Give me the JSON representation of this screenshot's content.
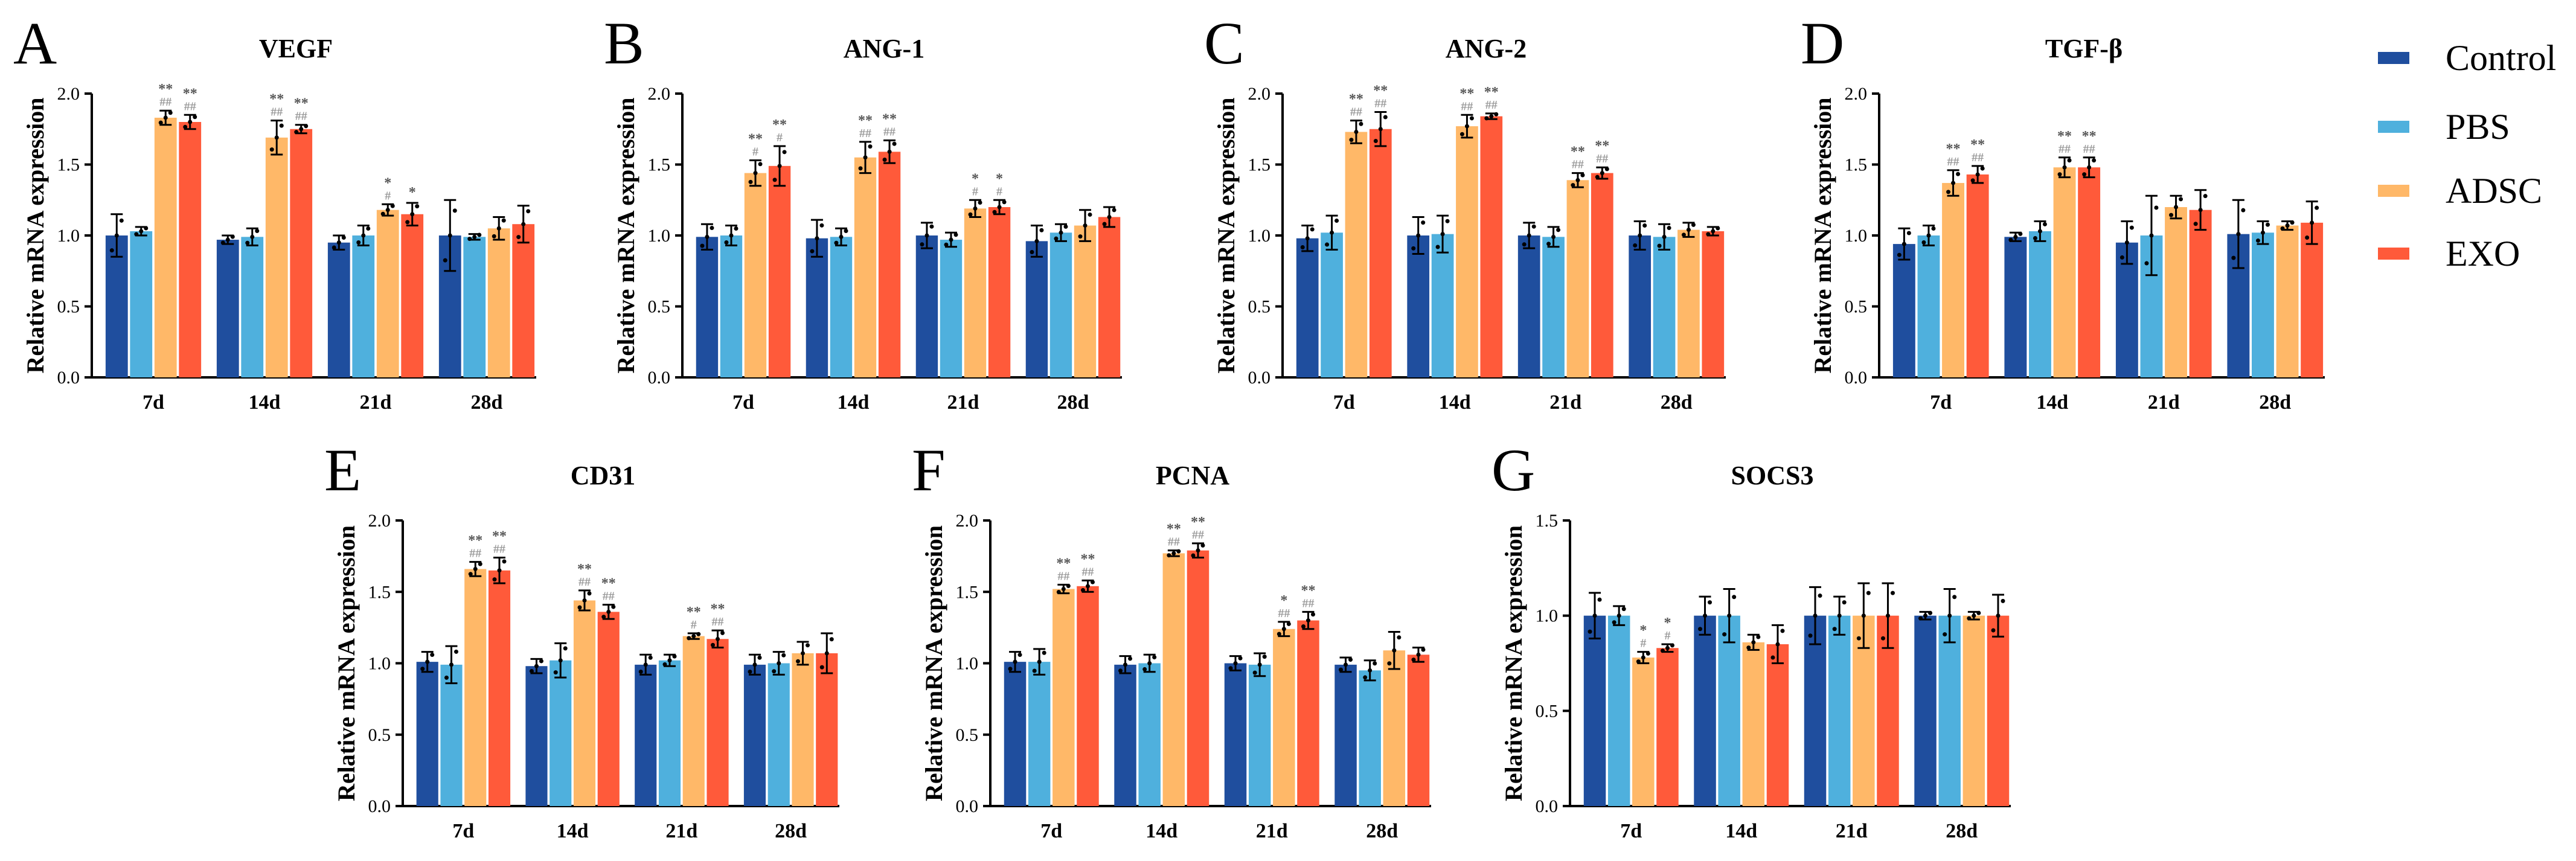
{
  "chart_data": [
    {
      "panel": "A",
      "type": "bar",
      "title": "VEGF",
      "ylabel": "Relative mRNA expression",
      "xlabel": "",
      "ylim": [
        0,
        2.0
      ],
      "yticks": [
        "0.0",
        "0.5",
        "1.0",
        "1.5",
        "2.0"
      ],
      "categories": [
        "7d",
        "14d",
        "21d",
        "28d"
      ],
      "series": [
        {
          "name": "Control",
          "values": [
            1.0,
            0.97,
            0.95,
            1.0
          ],
          "errors": [
            0.15,
            0.03,
            0.05,
            0.25
          ]
        },
        {
          "name": "PBS",
          "values": [
            1.03,
            0.99,
            1.0,
            0.99
          ],
          "errors": [
            0.03,
            0.06,
            0.07,
            0.02
          ]
        },
        {
          "name": "ADSC",
          "values": [
            1.83,
            1.69,
            1.18,
            1.05
          ],
          "errors": [
            0.05,
            0.12,
            0.04,
            0.08
          ]
        },
        {
          "name": "EXO",
          "values": [
            1.8,
            1.75,
            1.15,
            1.08
          ],
          "errors": [
            0.05,
            0.03,
            0.08,
            0.13
          ]
        }
      ],
      "annotations": [
        {
          "series": "ADSC",
          "category": "7d",
          "star": "**",
          "hash": "##"
        },
        {
          "series": "EXO",
          "category": "7d",
          "star": "**",
          "hash": "##"
        },
        {
          "series": "ADSC",
          "category": "14d",
          "star": "**",
          "hash": "##"
        },
        {
          "series": "EXO",
          "category": "14d",
          "star": "**",
          "hash": "##"
        },
        {
          "series": "ADSC",
          "category": "21d",
          "star": "*",
          "hash": "#"
        },
        {
          "series": "EXO",
          "category": "21d",
          "star": "*",
          "hash": ""
        }
      ]
    },
    {
      "panel": "B",
      "type": "bar",
      "title": "ANG-1",
      "ylabel": "Relative mRNA expression",
      "xlabel": "",
      "ylim": [
        0,
        2.0
      ],
      "yticks": [
        "0.0",
        "0.5",
        "1.0",
        "1.5",
        "2.0"
      ],
      "categories": [
        "7d",
        "14d",
        "21d",
        "28d"
      ],
      "series": [
        {
          "name": "Control",
          "values": [
            0.99,
            0.98,
            1.0,
            0.96
          ],
          "errors": [
            0.09,
            0.13,
            0.09,
            0.11
          ]
        },
        {
          "name": "PBS",
          "values": [
            1.0,
            0.99,
            0.97,
            1.02
          ],
          "errors": [
            0.07,
            0.06,
            0.05,
            0.06
          ]
        },
        {
          "name": "ADSC",
          "values": [
            1.44,
            1.55,
            1.19,
            1.07
          ],
          "errors": [
            0.09,
            0.11,
            0.06,
            0.11
          ]
        },
        {
          "name": "EXO",
          "values": [
            1.49,
            1.59,
            1.2,
            1.13
          ],
          "errors": [
            0.14,
            0.08,
            0.05,
            0.07
          ]
        }
      ],
      "annotations": [
        {
          "series": "ADSC",
          "category": "7d",
          "star": "**",
          "hash": "#"
        },
        {
          "series": "EXO",
          "category": "7d",
          "star": "**",
          "hash": "#"
        },
        {
          "series": "ADSC",
          "category": "14d",
          "star": "**",
          "hash": "##"
        },
        {
          "series": "EXO",
          "category": "14d",
          "star": "**",
          "hash": "##"
        },
        {
          "series": "ADSC",
          "category": "21d",
          "star": "*",
          "hash": "#"
        },
        {
          "series": "EXO",
          "category": "21d",
          "star": "*",
          "hash": "#"
        }
      ]
    },
    {
      "panel": "C",
      "type": "bar",
      "title": "ANG-2",
      "ylabel": "Relative mRNA expression",
      "xlabel": "",
      "ylim": [
        0,
        2.0
      ],
      "yticks": [
        "0.0",
        "0.5",
        "1.0",
        "1.5",
        "2.0"
      ],
      "categories": [
        "7d",
        "14d",
        "21d",
        "28d"
      ],
      "series": [
        {
          "name": "Control",
          "values": [
            0.98,
            1.0,
            1.0,
            1.0
          ],
          "errors": [
            0.09,
            0.13,
            0.09,
            0.1
          ]
        },
        {
          "name": "PBS",
          "values": [
            1.02,
            1.01,
            0.99,
            0.99
          ],
          "errors": [
            0.12,
            0.13,
            0.07,
            0.09
          ]
        },
        {
          "name": "ADSC",
          "values": [
            1.73,
            1.77,
            1.39,
            1.04
          ],
          "errors": [
            0.08,
            0.08,
            0.05,
            0.05
          ]
        },
        {
          "name": "EXO",
          "values": [
            1.75,
            1.84,
            1.44,
            1.03
          ],
          "errors": [
            0.12,
            0.02,
            0.04,
            0.03
          ]
        }
      ],
      "annotations": [
        {
          "series": "ADSC",
          "category": "7d",
          "star": "**",
          "hash": "##"
        },
        {
          "series": "EXO",
          "category": "7d",
          "star": "**",
          "hash": "##"
        },
        {
          "series": "ADSC",
          "category": "14d",
          "star": "**",
          "hash": "##"
        },
        {
          "series": "EXO",
          "category": "14d",
          "star": "**",
          "hash": "##"
        },
        {
          "series": "ADSC",
          "category": "21d",
          "star": "**",
          "hash": "##"
        },
        {
          "series": "EXO",
          "category": "21d",
          "star": "**",
          "hash": "##"
        }
      ]
    },
    {
      "panel": "D",
      "type": "bar",
      "title": "TGF-β",
      "ylabel": "Relative mRNA expression",
      "xlabel": "",
      "ylim": [
        0,
        2.0
      ],
      "yticks": [
        "0.0",
        "0.5",
        "1.0",
        "1.5",
        "2.0"
      ],
      "categories": [
        "7d",
        "14d",
        "21d",
        "28d"
      ],
      "series": [
        {
          "name": "Control",
          "values": [
            0.94,
            0.99,
            0.95,
            1.01
          ],
          "errors": [
            0.11,
            0.03,
            0.15,
            0.24
          ]
        },
        {
          "name": "PBS",
          "values": [
            1.0,
            1.03,
            1.0,
            1.02
          ],
          "errors": [
            0.07,
            0.07,
            0.28,
            0.08
          ]
        },
        {
          "name": "ADSC",
          "values": [
            1.37,
            1.48,
            1.2,
            1.07
          ],
          "errors": [
            0.09,
            0.07,
            0.08,
            0.03
          ]
        },
        {
          "name": "EXO",
          "values": [
            1.43,
            1.48,
            1.18,
            1.09
          ],
          "errors": [
            0.06,
            0.07,
            0.14,
            0.15
          ]
        }
      ],
      "annotations": [
        {
          "series": "ADSC",
          "category": "7d",
          "star": "**",
          "hash": "##"
        },
        {
          "series": "EXO",
          "category": "7d",
          "star": "**",
          "hash": "##"
        },
        {
          "series": "ADSC",
          "category": "14d",
          "star": "**",
          "hash": "##"
        },
        {
          "series": "EXO",
          "category": "14d",
          "star": "**",
          "hash": "##"
        }
      ]
    },
    {
      "panel": "E",
      "type": "bar",
      "title": "CD31",
      "ylabel": "Relative mRNA expression",
      "xlabel": "",
      "ylim": [
        0,
        2.0
      ],
      "yticks": [
        "0.0",
        "0.5",
        "1.0",
        "1.5",
        "2.0"
      ],
      "categories": [
        "7d",
        "14d",
        "21d",
        "28d"
      ],
      "series": [
        {
          "name": "Control",
          "values": [
            1.01,
            0.98,
            0.99,
            0.99
          ],
          "errors": [
            0.07,
            0.05,
            0.07,
            0.07
          ]
        },
        {
          "name": "PBS",
          "values": [
            0.99,
            1.02,
            1.02,
            1.0
          ],
          "errors": [
            0.13,
            0.12,
            0.04,
            0.08
          ]
        },
        {
          "name": "ADSC",
          "values": [
            1.66,
            1.44,
            1.19,
            1.07
          ],
          "errors": [
            0.05,
            0.07,
            0.02,
            0.08
          ]
        },
        {
          "name": "EXO",
          "values": [
            1.65,
            1.36,
            1.17,
            1.07
          ],
          "errors": [
            0.09,
            0.05,
            0.06,
            0.14
          ]
        }
      ],
      "annotations": [
        {
          "series": "ADSC",
          "category": "7d",
          "star": "**",
          "hash": "##"
        },
        {
          "series": "EXO",
          "category": "7d",
          "star": "**",
          "hash": "##"
        },
        {
          "series": "ADSC",
          "category": "14d",
          "star": "**",
          "hash": "##"
        },
        {
          "series": "EXO",
          "category": "14d",
          "star": "**",
          "hash": "##"
        },
        {
          "series": "ADSC",
          "category": "21d",
          "star": "**",
          "hash": "#"
        },
        {
          "series": "EXO",
          "category": "21d",
          "star": "**",
          "hash": "##"
        }
      ]
    },
    {
      "panel": "F",
      "type": "bar",
      "title": "PCNA",
      "ylabel": "Relative mRNA expression",
      "xlabel": "",
      "ylim": [
        0,
        2.0
      ],
      "yticks": [
        "0.0",
        "0.5",
        "1.0",
        "1.5",
        "2.0"
      ],
      "categories": [
        "7d",
        "14d",
        "21d",
        "28d"
      ],
      "series": [
        {
          "name": "Control",
          "values": [
            1.01,
            0.99,
            1.0,
            0.99
          ],
          "errors": [
            0.07,
            0.06,
            0.05,
            0.05
          ]
        },
        {
          "name": "PBS",
          "values": [
            1.01,
            1.0,
            0.99,
            0.95
          ],
          "errors": [
            0.09,
            0.06,
            0.08,
            0.07
          ]
        },
        {
          "name": "ADSC",
          "values": [
            1.52,
            1.77,
            1.24,
            1.09
          ],
          "errors": [
            0.03,
            0.02,
            0.05,
            0.13
          ]
        },
        {
          "name": "EXO",
          "values": [
            1.54,
            1.79,
            1.3,
            1.06
          ],
          "errors": [
            0.04,
            0.05,
            0.06,
            0.05
          ]
        }
      ],
      "annotations": [
        {
          "series": "ADSC",
          "category": "7d",
          "star": "**",
          "hash": "##"
        },
        {
          "series": "EXO",
          "category": "7d",
          "star": "**",
          "hash": "##"
        },
        {
          "series": "ADSC",
          "category": "14d",
          "star": "**",
          "hash": "##"
        },
        {
          "series": "EXO",
          "category": "14d",
          "star": "**",
          "hash": "##"
        },
        {
          "series": "ADSC",
          "category": "21d",
          "star": "*",
          "hash": "##"
        },
        {
          "series": "EXO",
          "category": "21d",
          "star": "**",
          "hash": "##"
        }
      ]
    },
    {
      "panel": "G",
      "type": "bar",
      "title": "SOCS3",
      "ylabel": "Relative mRNA expression",
      "xlabel": "",
      "ylim": [
        0,
        1.5
      ],
      "yticks": [
        "0.0",
        "0.5",
        "1.0",
        "1.5"
      ],
      "categories": [
        "7d",
        "14d",
        "21d",
        "28d"
      ],
      "series": [
        {
          "name": "Control",
          "values": [
            1.0,
            1.0,
            1.0,
            1.0
          ],
          "errors": [
            0.12,
            0.1,
            0.15,
            0.02
          ]
        },
        {
          "name": "PBS",
          "values": [
            1.0,
            1.0,
            1.0,
            1.0
          ],
          "errors": [
            0.05,
            0.14,
            0.1,
            0.14
          ]
        },
        {
          "name": "ADSC",
          "values": [
            0.78,
            0.86,
            1.0,
            1.0
          ],
          "errors": [
            0.03,
            0.04,
            0.17,
            0.02
          ]
        },
        {
          "name": "EXO",
          "values": [
            0.83,
            0.85,
            1.0,
            1.0
          ],
          "errors": [
            0.02,
            0.1,
            0.17,
            0.11
          ]
        }
      ],
      "annotations": [
        {
          "series": "ADSC",
          "category": "7d",
          "star": "*",
          "hash": "#"
        },
        {
          "series": "EXO",
          "category": "7d",
          "star": "*",
          "hash": "#"
        }
      ]
    }
  ],
  "legend": {
    "position": "right",
    "items": [
      {
        "label": "Control",
        "color": "#1f4e9e"
      },
      {
        "label": "PBS",
        "color": "#4fb0dd"
      },
      {
        "label": "ADSC",
        "color": "#ffb868"
      },
      {
        "label": "EXO",
        "color": "#ff5a3a"
      }
    ]
  }
}
